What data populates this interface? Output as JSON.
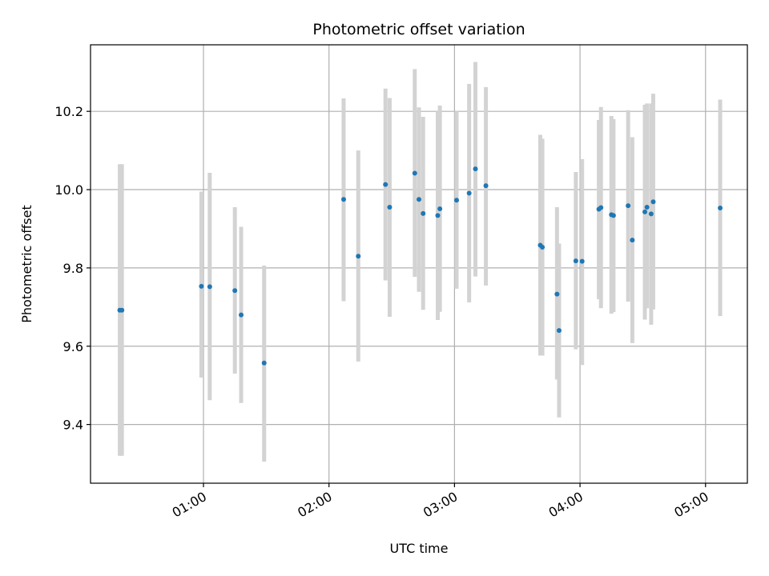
{
  "chart_data": {
    "type": "scatter",
    "title": "Photometric offset variation",
    "xlabel": "UTC time",
    "ylabel": "Photometric offset",
    "x_unit": "UTC time (HH:MM)",
    "xlim": [
      "00:06",
      "05:20"
    ],
    "ylim": [
      9.25,
      10.37
    ],
    "grid": true,
    "x_ticks": [
      "01:00",
      "02:00",
      "03:00",
      "04:00",
      "05:00"
    ],
    "y_ticks": [
      9.4,
      9.6,
      9.8,
      10.0,
      10.2
    ],
    "y_tick_labels": [
      "9.4",
      "9.6",
      "9.8",
      "10.0",
      "10.2"
    ],
    "colors": {
      "points": "#1f77b4",
      "errorbars": "#d3d3d3",
      "grid": "#b0b0b0"
    },
    "series": [
      {
        "marker": "point",
        "points": [
          {
            "x": "00:20",
            "y": 9.692,
            "low": 9.32,
            "high": 10.065
          },
          {
            "x": "00:21",
            "y": 9.692,
            "low": 9.32,
            "high": 10.065
          },
          {
            "x": "00:59",
            "y": 9.753,
            "low": 9.52,
            "high": 9.995
          },
          {
            "x": "01:03",
            "y": 9.752,
            "low": 9.462,
            "high": 10.043
          },
          {
            "x": "01:15",
            "y": 9.742,
            "low": 9.53,
            "high": 9.955
          },
          {
            "x": "01:18",
            "y": 9.68,
            "low": 9.455,
            "high": 9.905
          },
          {
            "x": "01:29",
            "y": 9.557,
            "low": 9.305,
            "high": 9.806
          },
          {
            "x": "02:07",
            "y": 9.975,
            "low": 9.715,
            "high": 10.233
          },
          {
            "x": "02:14",
            "y": 9.83,
            "low": 9.561,
            "high": 10.1
          },
          {
            "x": "02:27",
            "y": 10.013,
            "low": 9.768,
            "high": 10.258
          },
          {
            "x": "02:29",
            "y": 9.955,
            "low": 9.675,
            "high": 10.234
          },
          {
            "x": "02:41",
            "y": 10.042,
            "low": 9.777,
            "high": 10.308
          },
          {
            "x": "02:43",
            "y": 9.975,
            "low": 9.739,
            "high": 10.21
          },
          {
            "x": "02:45",
            "y": 9.939,
            "low": 9.693,
            "high": 10.186
          },
          {
            "x": "02:52",
            "y": 9.934,
            "low": 9.667,
            "high": 10.2
          },
          {
            "x": "02:53",
            "y": 9.951,
            "low": 9.688,
            "high": 10.215
          },
          {
            "x": "03:01",
            "y": 9.973,
            "low": 9.747,
            "high": 10.2
          },
          {
            "x": "03:07",
            "y": 9.991,
            "low": 9.712,
            "high": 10.27
          },
          {
            "x": "03:10",
            "y": 10.053,
            "low": 9.778,
            "high": 10.326
          },
          {
            "x": "03:15",
            "y": 10.01,
            "low": 9.755,
            "high": 10.262
          },
          {
            "x": "03:41",
            "y": 9.858,
            "low": 9.576,
            "high": 10.14
          },
          {
            "x": "03:42",
            "y": 9.853,
            "low": 9.576,
            "high": 10.13
          },
          {
            "x": "03:49",
            "y": 9.733,
            "low": 9.515,
            "high": 9.955
          },
          {
            "x": "03:50",
            "y": 9.64,
            "low": 9.418,
            "high": 9.862
          },
          {
            "x": "03:58",
            "y": 9.818,
            "low": 9.592,
            "high": 10.045
          },
          {
            "x": "04:01",
            "y": 9.817,
            "low": 9.552,
            "high": 10.078
          },
          {
            "x": "04:09",
            "y": 9.95,
            "low": 9.72,
            "high": 10.178
          },
          {
            "x": "04:10",
            "y": 9.954,
            "low": 9.697,
            "high": 10.211
          },
          {
            "x": "04:15",
            "y": 9.936,
            "low": 9.683,
            "high": 10.188
          },
          {
            "x": "04:16",
            "y": 9.934,
            "low": 9.687,
            "high": 10.18
          },
          {
            "x": "04:23",
            "y": 9.959,
            "low": 9.714,
            "high": 10.203
          },
          {
            "x": "04:25",
            "y": 9.871,
            "low": 9.608,
            "high": 10.134
          },
          {
            "x": "04:31",
            "y": 9.943,
            "low": 9.668,
            "high": 10.217
          },
          {
            "x": "04:32",
            "y": 9.955,
            "low": 9.697,
            "high": 10.22
          },
          {
            "x": "04:34",
            "y": 9.938,
            "low": 9.655,
            "high": 10.22
          },
          {
            "x": "04:35",
            "y": 9.969,
            "low": 9.694,
            "high": 10.245
          },
          {
            "x": "05:07",
            "y": 9.953,
            "low": 9.677,
            "high": 10.23
          }
        ]
      }
    ]
  }
}
